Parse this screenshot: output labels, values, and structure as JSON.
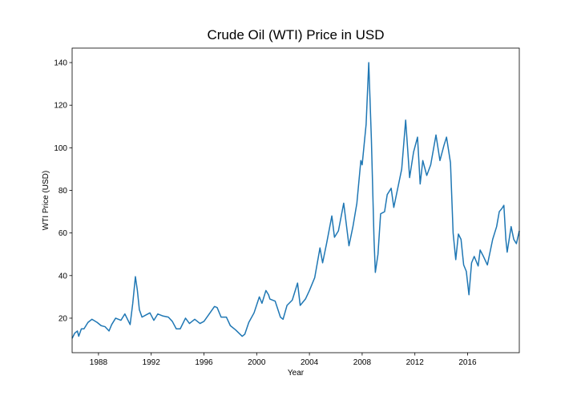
{
  "chart_data": {
    "type": "line",
    "title": "Crude Oil (WTI) Price in USD",
    "x_label": "Year",
    "y_label": "WTI Price (USD)",
    "color": "#1f77b4",
    "xlim": [
      1986.0,
      2019.92
    ],
    "ylim": [
      3.8,
      146.8
    ],
    "xticks": [
      1988,
      1992,
      1996,
      2000,
      2004,
      2008,
      2012,
      2016
    ],
    "yticks": [
      20,
      40,
      60,
      80,
      100,
      120,
      140
    ],
    "x": [
      1986.0,
      1986.2,
      1986.4,
      1986.5,
      1986.7,
      1986.9,
      1987.2,
      1987.5,
      1987.9,
      1988.2,
      1988.5,
      1988.8,
      1989.0,
      1989.3,
      1989.7,
      1990.0,
      1990.4,
      1990.6,
      1990.8,
      1990.95,
      1991.1,
      1991.3,
      1991.6,
      1991.9,
      1992.2,
      1992.5,
      1992.9,
      1993.3,
      1993.6,
      1993.9,
      1994.2,
      1994.6,
      1994.9,
      1995.3,
      1995.7,
      1996.0,
      1996.4,
      1996.8,
      1997.0,
      1997.3,
      1997.7,
      1998.0,
      1998.4,
      1998.9,
      1999.1,
      1999.4,
      1999.8,
      2000.2,
      2000.4,
      2000.7,
      2000.9,
      2001.0,
      2001.4,
      2001.8,
      2002.0,
      2002.3,
      2002.7,
      2003.1,
      2003.3,
      2003.7,
      2004.0,
      2004.4,
      2004.8,
      2005.0,
      2005.3,
      2005.7,
      2005.9,
      2006.2,
      2006.6,
      2006.9,
      2007.0,
      2007.3,
      2007.6,
      2007.9,
      2008.0,
      2008.3,
      2008.5,
      2008.7,
      2008.9,
      2009.0,
      2009.2,
      2009.4,
      2009.7,
      2009.9,
      2010.2,
      2010.4,
      2010.8,
      2011.0,
      2011.3,
      2011.6,
      2011.9,
      2012.2,
      2012.4,
      2012.6,
      2012.9,
      2013.2,
      2013.6,
      2013.9,
      2014.2,
      2014.4,
      2014.7,
      2014.9,
      2015.1,
      2015.3,
      2015.5,
      2015.7,
      2015.9,
      2016.1,
      2016.3,
      2016.5,
      2016.8,
      2016.95,
      2017.2,
      2017.5,
      2017.9,
      2018.2,
      2018.4,
      2018.6,
      2018.75,
      2018.9,
      2019.0,
      2019.3,
      2019.5,
      2019.7,
      2019.92
    ],
    "values": [
      10.5,
      13,
      14,
      11.5,
      15,
      15,
      18,
      19.5,
      18,
      16.5,
      16,
      14,
      17,
      20,
      19,
      22,
      17,
      27,
      39.5,
      33,
      24,
      20.5,
      21.5,
      22.5,
      19,
      22,
      21,
      20.5,
      18.5,
      15,
      15,
      20,
      17.5,
      19.5,
      17.5,
      18.5,
      22,
      25.5,
      25,
      20.5,
      20.5,
      16.5,
      14.5,
      11.5,
      12.5,
      18,
      22.5,
      30,
      27,
      33,
      31,
      29,
      28,
      20.5,
      19.5,
      26,
      28.5,
      36.5,
      26,
      29,
      33,
      39,
      53,
      46,
      55,
      68,
      58,
      61,
      74,
      59,
      54,
      63,
      74,
      94,
      92,
      111,
      140,
      104,
      57,
      41.5,
      50,
      69,
      70,
      78,
      81,
      72,
      84,
      90,
      113,
      86,
      98,
      105,
      83,
      94,
      87,
      92,
      106,
      94,
      101,
      105,
      93,
      60,
      47.5,
      59.5,
      57,
      45,
      42,
      31,
      46,
      49,
      44.5,
      52,
      49,
      45,
      57,
      63,
      70,
      71.5,
      73,
      57,
      51,
      63,
      57,
      55,
      61
    ]
  }
}
